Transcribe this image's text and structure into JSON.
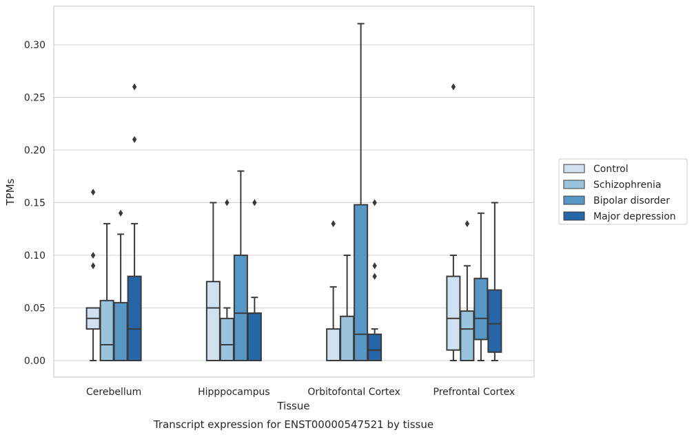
{
  "chart_data": {
    "type": "box",
    "caption": "Transcript expression for ENST00000547521 by tissue",
    "xlabel": "Tissue",
    "ylabel": "TPMs",
    "ylim": [
      -0.015,
      0.337
    ],
    "yticks": [
      0.0,
      0.05,
      0.1,
      0.15,
      0.2,
      0.25,
      0.3
    ],
    "ytick_labels": [
      "0.00",
      "0.05",
      "0.10",
      "0.15",
      "0.20",
      "0.25",
      "0.30"
    ],
    "grid": "horizontal",
    "legend_position": "right",
    "categories": [
      "Cerebellum",
      "Hipppocampus",
      "Orbitofontal Cortex",
      "Prefrontal Cortex"
    ],
    "series": [
      {
        "name": "Control",
        "color": "#cfe0f0",
        "boxes": [
          {
            "whisker_low": 0.0,
            "q1": 0.03,
            "median": 0.04,
            "q3": 0.05,
            "whisker_high": 0.05,
            "outliers": [
              0.09,
              0.1,
              0.16
            ]
          },
          {
            "whisker_low": 0.0,
            "q1": 0.0,
            "median": 0.05,
            "q3": 0.075,
            "whisker_high": 0.15,
            "outliers": []
          },
          {
            "whisker_low": 0.0,
            "q1": 0.0,
            "median": 0.0,
            "q3": 0.03,
            "whisker_high": 0.07,
            "outliers": [
              0.13
            ]
          },
          {
            "whisker_low": 0.0,
            "q1": 0.01,
            "median": 0.04,
            "q3": 0.08,
            "whisker_high": 0.1,
            "outliers": [
              0.26
            ]
          }
        ]
      },
      {
        "name": "Schizophrenia",
        "color": "#9ac4de",
        "boxes": [
          {
            "whisker_low": 0.0,
            "q1": 0.0,
            "median": 0.015,
            "q3": 0.057,
            "whisker_high": 0.13,
            "outliers": []
          },
          {
            "whisker_low": 0.0,
            "q1": 0.0,
            "median": 0.015,
            "q3": 0.04,
            "whisker_high": 0.05,
            "outliers": [
              0.15
            ]
          },
          {
            "whisker_low": 0.0,
            "q1": 0.0,
            "median": 0.0,
            "q3": 0.042,
            "whisker_high": 0.1,
            "outliers": []
          },
          {
            "whisker_low": 0.0,
            "q1": 0.0,
            "median": 0.03,
            "q3": 0.047,
            "whisker_high": 0.09,
            "outliers": [
              0.13
            ]
          }
        ]
      },
      {
        "name": "Bipolar disorder",
        "color": "#5797c6",
        "boxes": [
          {
            "whisker_low": 0.0,
            "q1": 0.0,
            "median": 0.0,
            "q3": 0.055,
            "whisker_high": 0.12,
            "outliers": [
              0.14
            ]
          },
          {
            "whisker_low": 0.0,
            "q1": 0.0,
            "median": 0.045,
            "q3": 0.1,
            "whisker_high": 0.18,
            "outliers": []
          },
          {
            "whisker_low": 0.0,
            "q1": 0.0,
            "median": 0.025,
            "q3": 0.148,
            "whisker_high": 0.32,
            "outliers": []
          },
          {
            "whisker_low": 0.0,
            "q1": 0.02,
            "median": 0.04,
            "q3": 0.078,
            "whisker_high": 0.14,
            "outliers": []
          }
        ]
      },
      {
        "name": "Major depression",
        "color": "#2565a8",
        "boxes": [
          {
            "whisker_low": 0.0,
            "q1": 0.0,
            "median": 0.03,
            "q3": 0.08,
            "whisker_high": 0.13,
            "outliers": [
              0.21,
              0.26
            ]
          },
          {
            "whisker_low": 0.0,
            "q1": 0.0,
            "median": 0.045,
            "q3": 0.045,
            "whisker_high": 0.06,
            "outliers": [
              0.15
            ]
          },
          {
            "whisker_low": 0.0,
            "q1": 0.0,
            "median": 0.01,
            "q3": 0.025,
            "whisker_high": 0.03,
            "outliers": [
              0.08,
              0.09,
              0.15
            ]
          },
          {
            "whisker_low": 0.0,
            "q1": 0.008,
            "median": 0.035,
            "q3": 0.067,
            "whisker_high": 0.15,
            "outliers": []
          }
        ]
      }
    ]
  }
}
